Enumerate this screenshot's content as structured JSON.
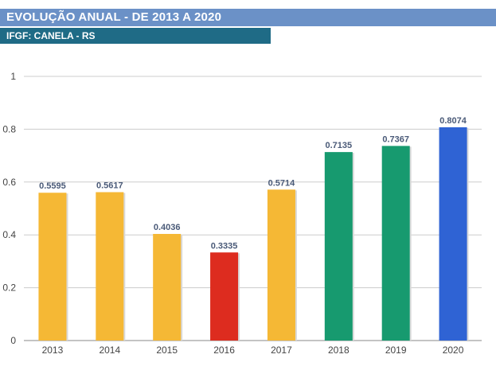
{
  "header": {
    "title": "EVOLUÇÃO ANUAL - DE 2013 A 2020",
    "subtitle": "IFGF: CANELA - RS"
  },
  "colors": {
    "title_bg": "#6b91c7",
    "subtitle_bg": "#1f6b86",
    "yellow": "#f5b835",
    "red": "#dd2c1f",
    "green": "#179a6f",
    "blue": "#2f63d4"
  },
  "chart_data": {
    "type": "bar",
    "categories": [
      "2013",
      "2014",
      "2015",
      "2016",
      "2017",
      "2018",
      "2019",
      "2020"
    ],
    "values": [
      0.5595,
      0.5617,
      0.4036,
      0.3335,
      0.5714,
      0.7135,
      0.7367,
      0.8074
    ],
    "value_labels": [
      "0.5595",
      "0.5617",
      "0.4036",
      "0.3335",
      "0.5714",
      "0.7135",
      "0.7367",
      "0.8074"
    ],
    "bar_colors": [
      "#f5b835",
      "#f5b835",
      "#f5b835",
      "#dd2c1f",
      "#f5b835",
      "#179a6f",
      "#179a6f",
      "#2f63d4"
    ],
    "yticks": [
      "0",
      "0.2",
      "0.4",
      "0.6",
      "0.8",
      "1"
    ],
    "ylim": [
      0,
      1
    ],
    "grid": true,
    "legend": "none"
  }
}
